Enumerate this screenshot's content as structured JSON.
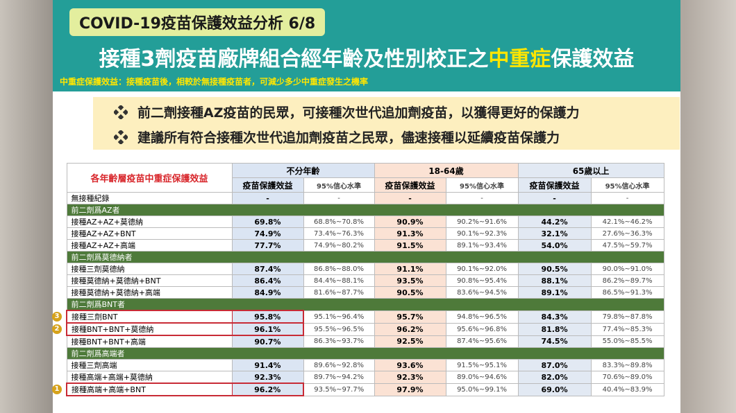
{
  "header": {
    "tag": "COVID-19疫苗保護效益分析 6/8",
    "title": [
      "接種3劑疫苗廠牌組合經年齡及性別校正之",
      "中重症",
      "保護效益"
    ],
    "subtitle": "中重症保護效益：接種疫苗後，相較於無接種疫苗者，可減少多少中重症發生之機率"
  },
  "bullets": [
    "前二劑接種AZ疫苗的民眾，可接種次世代追加劑疫苗，以獲得更好的保護力",
    "建議所有符合接種次世代追加劑疫苗之民眾，儘速接種以延續疫苗保護力"
  ],
  "table": {
    "corner": "各年齡層疫苗中重症保護效益",
    "groups": [
      "不分年齡",
      "18-64歲",
      "65歲以上"
    ],
    "subheaders": [
      "疫苗保護效益",
      "95%信心水準",
      "疫苗保護效益",
      "95%信心水準",
      "疫苗保護效益",
      "95%信心水準"
    ],
    "rows": [
      {
        "label": "無接種紀錄",
        "cells": [
          "-",
          "-",
          "-",
          "-",
          "-",
          "-"
        ]
      },
      {
        "section": "前二劑爲AZ者"
      },
      {
        "label": "接種AZ+AZ+莫德納",
        "cells": [
          "69.8%",
          "68.8%~70.8%",
          "90.9%",
          "90.2%~91.6%",
          "44.2%",
          "42.1%~46.2%"
        ]
      },
      {
        "label": "接種AZ+AZ+BNT",
        "cells": [
          "74.9%",
          "73.4%~76.3%",
          "91.3%",
          "90.1%~92.3%",
          "32.1%",
          "27.6%~36.3%"
        ]
      },
      {
        "label": "接種AZ+AZ+高端",
        "cells": [
          "77.7%",
          "74.9%~80.2%",
          "91.5%",
          "89.1%~93.4%",
          "54.0%",
          "47.5%~59.7%"
        ]
      },
      {
        "section": "前二劑爲莫德納者"
      },
      {
        "label": "接種三劑莫德納",
        "cells": [
          "87.4%",
          "86.8%~88.0%",
          "91.1%",
          "90.1%~92.0%",
          "90.5%",
          "90.0%~91.0%"
        ]
      },
      {
        "label": "接種莫德納+莫德納+BNT",
        "cells": [
          "86.4%",
          "84.4%~88.1%",
          "93.5%",
          "90.8%~95.4%",
          "88.1%",
          "86.2%~89.7%"
        ]
      },
      {
        "label": "接種莫德納+莫德納+高端",
        "cells": [
          "84.9%",
          "81.6%~87.7%",
          "90.5%",
          "83.6%~94.5%",
          "89.1%",
          "86.5%~91.3%"
        ]
      },
      {
        "section": "前二劑爲BNT者"
      },
      {
        "label": "接種三劑BNT",
        "rank": "3",
        "cells": [
          "95.8%",
          "95.1%~96.4%",
          "95.7%",
          "94.8%~96.5%",
          "84.3%",
          "79.8%~87.8%"
        ]
      },
      {
        "label": "接種BNT+BNT+莫德納",
        "rank": "2",
        "cells": [
          "96.1%",
          "95.5%~96.5%",
          "96.2%",
          "95.6%~96.8%",
          "81.8%",
          "77.4%~85.3%"
        ]
      },
      {
        "label": "接種BNT+BNT+高端",
        "cells": [
          "90.7%",
          "86.3%~93.7%",
          "92.5%",
          "87.4%~95.6%",
          "74.5%",
          "55.0%~85.5%"
        ]
      },
      {
        "section": "前二劑爲高端者"
      },
      {
        "label": "接種三劑高端",
        "cells": [
          "91.4%",
          "89.6%~92.8%",
          "93.6%",
          "91.5%~95.1%",
          "87.0%",
          "83.3%~89.8%"
        ]
      },
      {
        "label": "接種高端+高端+莫德納",
        "cells": [
          "92.3%",
          "89.7%~94.2%",
          "92.3%",
          "89.0%~94.6%",
          "82.0%",
          "70.6%~89.0%"
        ]
      },
      {
        "label": "接種高端+高端+BNT",
        "rank": "1",
        "cells": [
          "96.2%",
          "93.5%~97.7%",
          "97.9%",
          "95.0%~99.1%",
          "69.0%",
          "40.4%~83.9%"
        ]
      }
    ]
  }
}
